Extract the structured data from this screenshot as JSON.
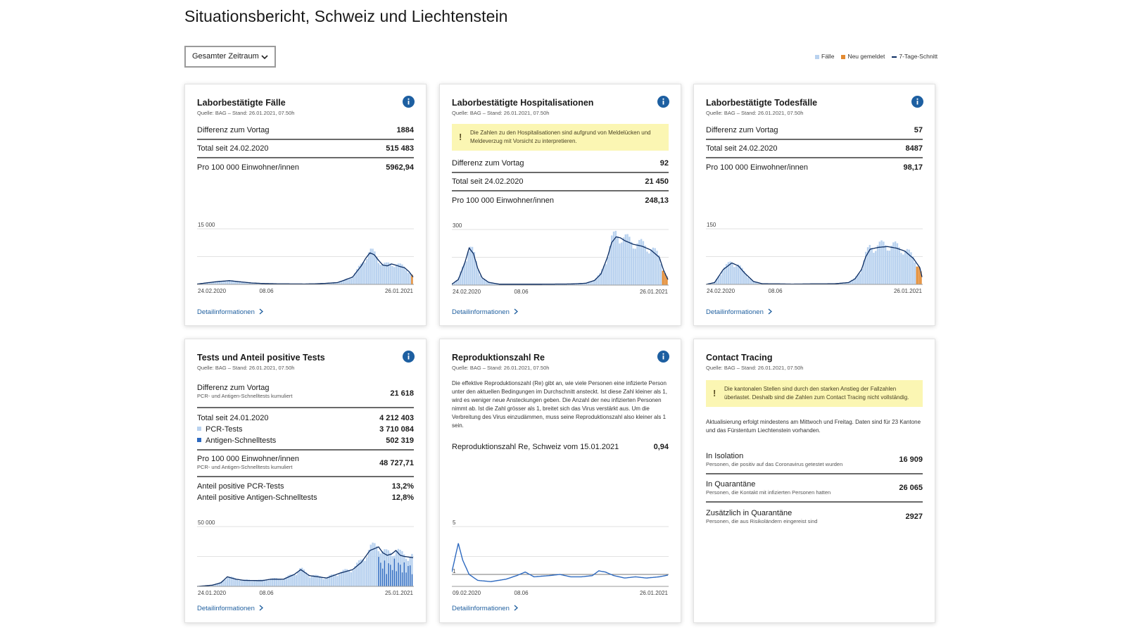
{
  "page": {
    "title": "Situationsbericht, Schweiz und Liechtenstein",
    "period_select": "Gesamter Zeitraum",
    "legend": {
      "faelle": "Fälle",
      "neu": "Neu gemeldet",
      "schnitt": "7-Tage-Schnitt"
    },
    "colors": {
      "bars": "#b9d2ef",
      "new": "#e38a31",
      "line": "#0c2d63",
      "blue": "#2e6ac0",
      "link": "#1f5f9f",
      "warn_bg": "#fbf6b3"
    },
    "detail_link": "Detailinformationen"
  },
  "cards": {
    "faelle": {
      "title": "Laborbestätigte Fälle",
      "source": "Quelle: BAG – Stand: 26.01.2021, 07.50h",
      "rows": [
        {
          "label": "Differenz zum Vortag",
          "value": "1884"
        },
        {
          "label": "Total seit 24.02.2020",
          "value": "515 483"
        },
        {
          "label": "Pro 100 000 Einwohner/innen",
          "value": "5962,94"
        }
      ]
    },
    "hosp": {
      "title": "Laborbestätigte Hospitalisationen",
      "source": "Quelle: BAG – Stand: 26.01.2021, 07.50h",
      "warning": "Die Zahlen zu den Hospitalisationen sind aufgrund von Meldelücken und Meldeverzug mit Vorsicht zu interpretieren.",
      "rows": [
        {
          "label": "Differenz zum Vortag",
          "value": "92"
        },
        {
          "label": "Total seit 24.02.2020",
          "value": "21 450"
        },
        {
          "label": "Pro 100 000 Einwohner/innen",
          "value": "248,13"
        }
      ]
    },
    "tod": {
      "title": "Laborbestätigte Todesfälle",
      "source": "Quelle: BAG – Stand: 26.01.2021, 07.50h",
      "rows": [
        {
          "label": "Differenz zum Vortag",
          "value": "57"
        },
        {
          "label": "Total seit 24.02.2020",
          "value": "8487"
        },
        {
          "label": "Pro 100 000 Einwohner/innen",
          "value": "98,17"
        }
      ]
    },
    "tests": {
      "title": "Tests und Anteil positive Tests",
      "source": "Quelle: BAG – Stand: 26.01.2021, 07.50h",
      "diff_label": "Differenz zum Vortag",
      "diff_sub": "PCR- und Antigen-Schnelltests kumuliert",
      "diff_value": "21 618",
      "total_label": "Total seit 24.01.2020",
      "total_value": "4 212 403",
      "pcr_label": "PCR-Tests",
      "pcr_value": "3 710 084",
      "antigen_label": "Antigen-Schnelltests",
      "antigen_value": "502 319",
      "pro_label": "Pro 100 000 Einwohner/innen",
      "pro_sub": "PCR- und Antigen-Schnelltests kumuliert",
      "pro_value": "48 727,71",
      "pos_pcr_label": "Anteil positive PCR-Tests",
      "pos_pcr_value": "13,2%",
      "pos_ag_label": "Anteil positive Antigen-Schnelltests",
      "pos_ag_value": "12,8%"
    },
    "re": {
      "title": "Reproduktionszahl Re",
      "source": "Quelle: BAG – Stand: 26.01.2021, 07.50h",
      "text": "Die effektive Reproduktionszahl (Re) gibt an, wie viele Personen eine infizierte Person unter den aktuellen Bedingungen im Durchschnitt ansteckt. Ist diese Zahl kleiner als 1, wird es weniger neue Ansteckungen geben. Die Anzahl der neu infizierten Personen nimmt ab. Ist die Zahl grösser als 1, breitet sich das Virus verstärkt aus. Um die Verbreitung des Virus einzudämmen, muss seine Reproduktionszahl also kleiner als 1 sein.",
      "row_label": "Reproduktionszahl Re, Schweiz vom 15.01.2021",
      "row_value": "0,94"
    },
    "ct": {
      "title": "Contact Tracing",
      "source": "Quelle: BAG – Stand: 26.01.2021, 07.50h",
      "warning": "Die kantonalen Stellen sind durch den starken Anstieg der Fallzahlen überlastet. Deshalb sind die Zahlen zum Contact Tracing nicht vollständig.",
      "note": "Aktualisierung erfolgt mindestens am Mittwoch und Freitag. Daten sind für 23 Kantone und das Fürstentum Liechtenstein vorhanden.",
      "rows": [
        {
          "label": "In Isolation",
          "sub": "Personen, die positiv auf das Coronavirus getestet wurden",
          "value": "16 909"
        },
        {
          "label": "In Quarantäne",
          "sub": "Personen, die Kontakt mit infizierten Personen hatten",
          "value": "26 065"
        },
        {
          "label": "Zusätzlich in Quarantäne",
          "sub": "Personen, die aus Risikoländern eingereist sind",
          "value": "2927"
        }
      ]
    }
  },
  "chart_data": [
    {
      "type": "bar",
      "title": "Laborbestätigte Fälle",
      "ymax_label": "15 000",
      "ylim": [
        0,
        15000
      ],
      "x_labels": [
        "24.02.2020",
        "08.06",
        "26.01.2021"
      ],
      "curve": [
        [
          0,
          100
        ],
        [
          10,
          800
        ],
        [
          15,
          1000
        ],
        [
          20,
          700
        ],
        [
          25,
          400
        ],
        [
          30,
          250
        ],
        [
          40,
          150
        ],
        [
          50,
          120
        ],
        [
          56,
          200
        ],
        [
          60,
          300
        ],
        [
          65,
          500
        ],
        [
          68,
          1100
        ],
        [
          72,
          2000
        ],
        [
          76,
          5000
        ],
        [
          78,
          7000
        ],
        [
          80,
          8500
        ],
        [
          82,
          8000
        ],
        [
          84,
          6500
        ],
        [
          86,
          5200
        ],
        [
          88,
          5000
        ],
        [
          90,
          5500
        ],
        [
          92,
          5200
        ],
        [
          94,
          4800
        ],
        [
          96,
          4500
        ],
        [
          98,
          3500
        ],
        [
          100,
          2000
        ]
      ],
      "new_from": 99
    },
    {
      "type": "bar",
      "title": "Laborbestätigte Hospitalisationen",
      "ymax_label": "300",
      "ylim": [
        0,
        300
      ],
      "x_labels": [
        "24.02.2020",
        "08.06",
        "26.01.2021"
      ],
      "curve": [
        [
          0,
          5
        ],
        [
          3,
          30
        ],
        [
          6,
          120
        ],
        [
          8,
          200
        ],
        [
          10,
          170
        ],
        [
          12,
          90
        ],
        [
          14,
          40
        ],
        [
          17,
          15
        ],
        [
          22,
          5
        ],
        [
          40,
          5
        ],
        [
          55,
          6
        ],
        [
          62,
          10
        ],
        [
          66,
          25
        ],
        [
          69,
          60
        ],
        [
          72,
          150
        ],
        [
          74,
          230
        ],
        [
          76,
          260
        ],
        [
          78,
          255
        ],
        [
          80,
          240
        ],
        [
          84,
          220
        ],
        [
          88,
          210
        ],
        [
          92,
          190
        ],
        [
          96,
          150
        ],
        [
          98,
          80
        ],
        [
          100,
          30
        ]
      ],
      "new_from": 97
    },
    {
      "type": "bar",
      "title": "Laborbestätigte Todesfälle",
      "ymax_label": "150",
      "ylim": [
        0,
        150
      ],
      "x_labels": [
        "24.02.2020",
        "08.06",
        "26.01.2021"
      ],
      "curve": [
        [
          0,
          0
        ],
        [
          4,
          5
        ],
        [
          8,
          40
        ],
        [
          12,
          58
        ],
        [
          15,
          50
        ],
        [
          18,
          30
        ],
        [
          22,
          8
        ],
        [
          26,
          2
        ],
        [
          40,
          1
        ],
        [
          60,
          2
        ],
        [
          66,
          5
        ],
        [
          69,
          15
        ],
        [
          72,
          40
        ],
        [
          74,
          75
        ],
        [
          76,
          95
        ],
        [
          80,
          100
        ],
        [
          84,
          102
        ],
        [
          88,
          98
        ],
        [
          92,
          90
        ],
        [
          96,
          70
        ],
        [
          99,
          45
        ],
        [
          100,
          20
        ]
      ],
      "new_from": 97
    },
    {
      "type": "bar",
      "title": "Tests und Anteil positive Tests",
      "ymax_label": "50 000",
      "ylim": [
        0,
        50000
      ],
      "x_labels": [
        "24.01.2020",
        "08.06",
        "25.01.2021"
      ],
      "curve": [
        [
          0,
          0
        ],
        [
          7,
          1000
        ],
        [
          11,
          3000
        ],
        [
          14,
          8000
        ],
        [
          18,
          6000
        ],
        [
          22,
          5000
        ],
        [
          30,
          4800
        ],
        [
          34,
          6000
        ],
        [
          40,
          6000
        ],
        [
          45,
          10000
        ],
        [
          48,
          14000
        ],
        [
          52,
          9000
        ],
        [
          60,
          7000
        ],
        [
          66,
          11000
        ],
        [
          72,
          14000
        ],
        [
          76,
          20000
        ],
        [
          80,
          30000
        ],
        [
          84,
          33000
        ],
        [
          86,
          28000
        ],
        [
          88,
          26000
        ],
        [
          90,
          27000
        ],
        [
          92,
          30000
        ],
        [
          94,
          26000
        ],
        [
          96,
          25000
        ],
        [
          100,
          24000
        ]
      ]
    },
    {
      "type": "line",
      "title": "Reproduktionszahl Re",
      "ymax_label": "5",
      "ref_label": "1",
      "ylim": [
        0,
        5
      ],
      "x_labels": [
        "09.02.2020",
        "08.06",
        "26.01.2021"
      ],
      "curve": [
        [
          0,
          1.2
        ],
        [
          1,
          2.0
        ],
        [
          3,
          3.6
        ],
        [
          5,
          2.2
        ],
        [
          8,
          1.0
        ],
        [
          12,
          0.5
        ],
        [
          18,
          0.4
        ],
        [
          25,
          0.6
        ],
        [
          30,
          0.9
        ],
        [
          34,
          1.2
        ],
        [
          38,
          0.8
        ],
        [
          45,
          0.9
        ],
        [
          50,
          1.0
        ],
        [
          55,
          0.8
        ],
        [
          60,
          0.8
        ],
        [
          65,
          0.9
        ],
        [
          68,
          1.3
        ],
        [
          71,
          1.2
        ],
        [
          75,
          0.9
        ],
        [
          80,
          0.7
        ],
        [
          85,
          0.8
        ],
        [
          90,
          0.7
        ],
        [
          96,
          0.8
        ],
        [
          100,
          0.94
        ]
      ]
    }
  ]
}
